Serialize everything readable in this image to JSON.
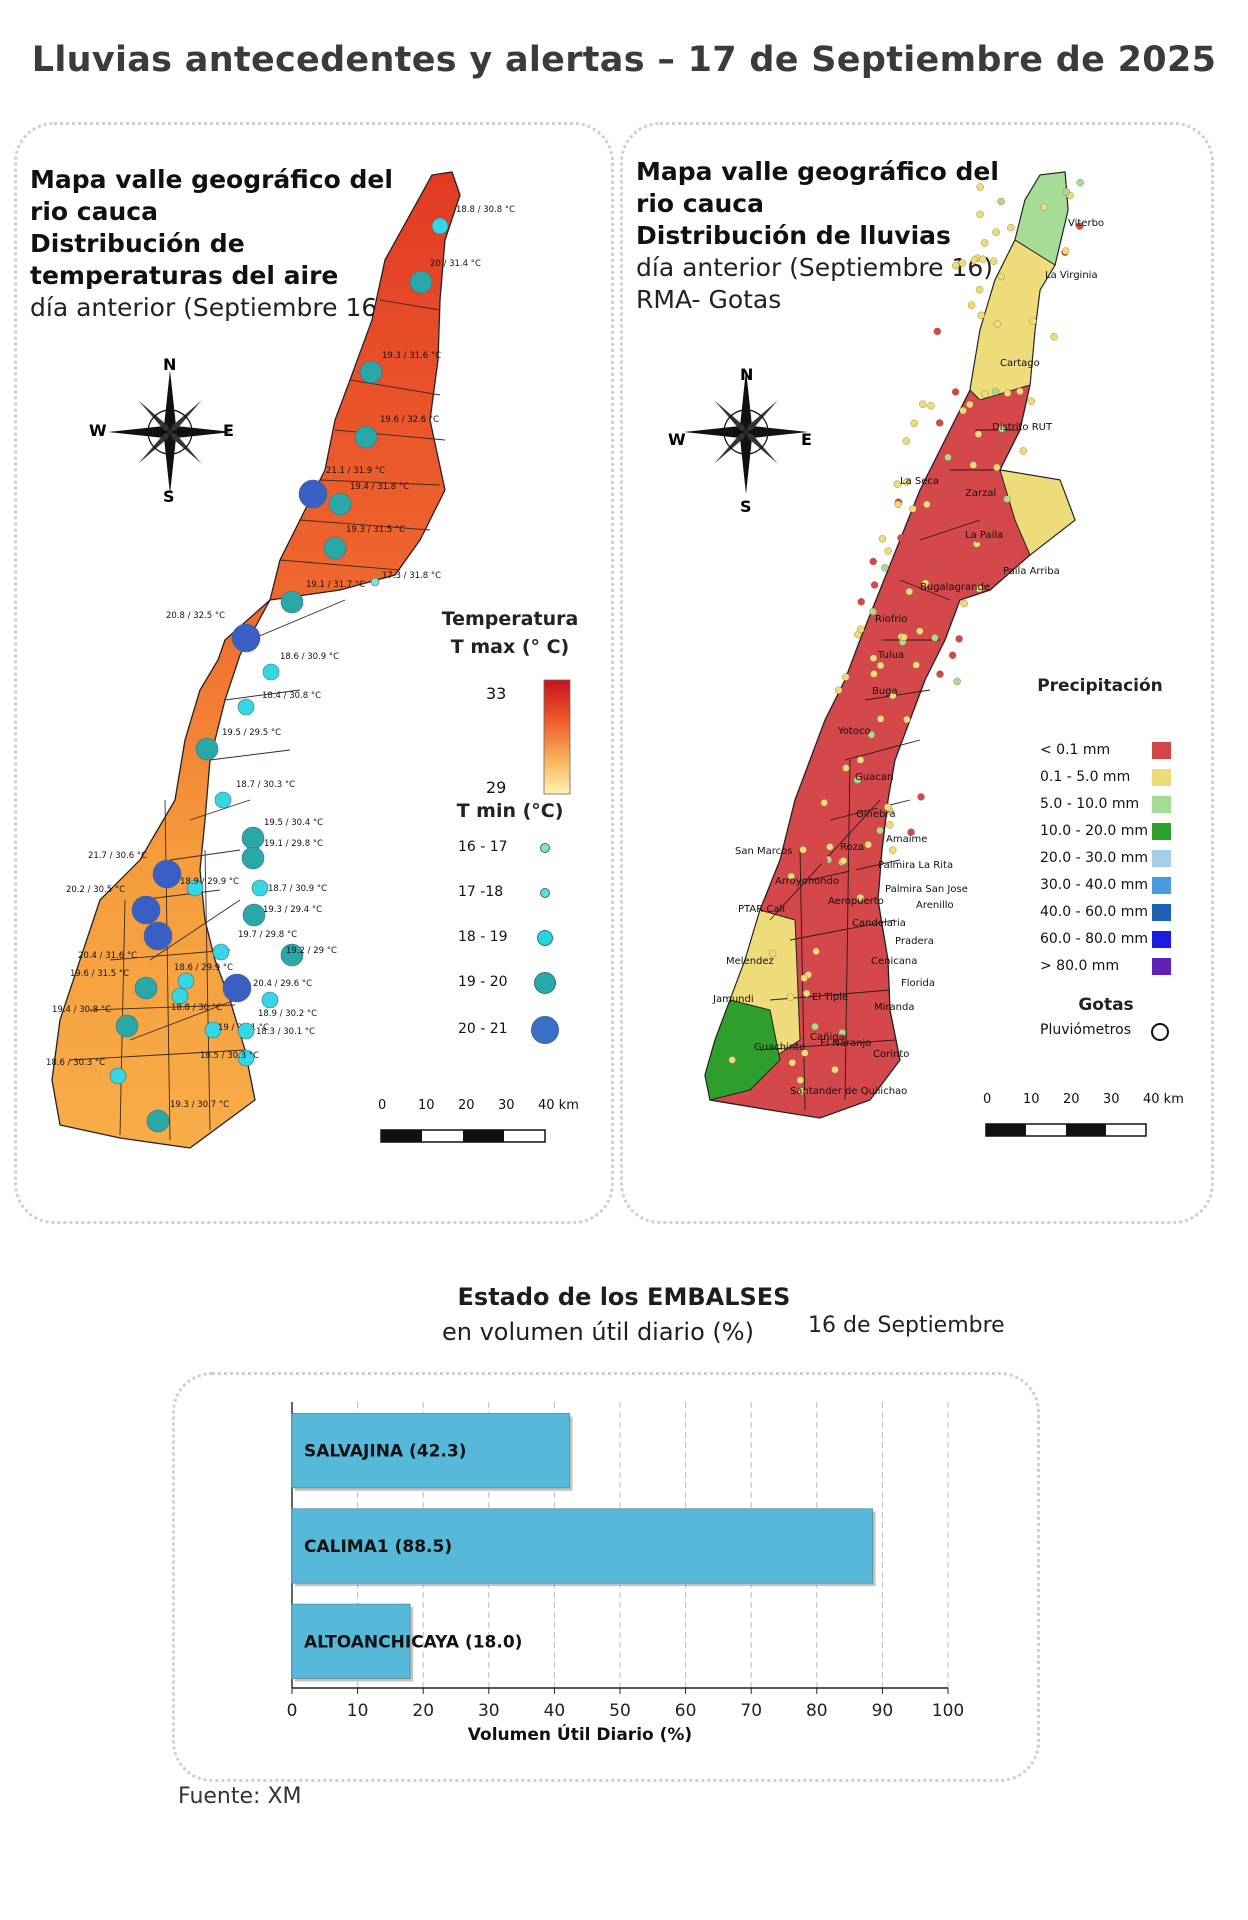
{
  "title": "Lluvias antecedentes y alertas – 17 de Septiembre de 2025",
  "left_panel": {
    "title_lines": [
      "Mapa valle geográfico del",
      "rio cauca"
    ],
    "bold_lines": [
      "Distribución de",
      "temperaturas del aire"
    ],
    "subtitle": "día anterior (Septiembre 16)",
    "compass": {
      "n": "N",
      "s": "S",
      "e": "E",
      "w": "W"
    },
    "legend": {
      "tmax_title_1": "Temperatura",
      "tmax_title_2": "T max (° C)",
      "tmax_high": "33",
      "tmax_low": "29",
      "tmin_title": "T min (°C)",
      "tmin_items": [
        {
          "label": "16 - 17",
          "color": "#7de3d0"
        },
        {
          "label": "17 -18",
          "color": "#5fdcdc"
        },
        {
          "label": "18 - 19",
          "color": "#22d6e0"
        },
        {
          "label": "19 - 20",
          "color": "#29a9a9"
        },
        {
          "label": "20 - 21",
          "color": "#3a6fc9"
        }
      ]
    },
    "scale": [
      "0",
      "10",
      "20",
      "30",
      "40 km"
    ],
    "stations": [
      "18.8 / 30.8 °C",
      "20 / 31.4 °C",
      "19.3 / 31.6 °C",
      "19.6 / 32.6 °C",
      "21.1 / 31.9 °C",
      "19.4 / 31.8 °C",
      "19.3 / 31.5 °C",
      "17.3 / 31.8 °C",
      "19.1 / 31.7 °C",
      "20.8 / 32.5 °C",
      "18.6 / 30.9 °C",
      "18.4 / 30.8 °C",
      "19.5 / 29.5 °C",
      "18.7 / 30.3 °C",
      "19.5 / 30.4 °C",
      "19.1 / 29.8 °C",
      "21.7 / 30.6 °C",
      "18.9 / 29.9 °C",
      "18.7 / 30.9 °C",
      "20.2 / 30.5 °C",
      "19.3 / 29.4 °C",
      "19.7 / 29.8 °C",
      "20.4 / 31.6 °C",
      "19.2 / 29 °C",
      "19.6 / 31.5 °C",
      "18.6 / 29.9 °C",
      "20.4 / 29.6 °C",
      "19.4 / 30.8 °C",
      "18.8 / 30 °C",
      "18.9 / 30.2 °C",
      "19 / 31.1 °C",
      "18.3 / 30.1 °C",
      "18.5 / 30.3 °C",
      "18.6 / 30.3 °C",
      "19.3 / 30.7 °C"
    ]
  },
  "right_panel": {
    "title_lines": [
      "Mapa valle geográfico del",
      "rio cauca"
    ],
    "bold_line": "Distribución de lluvias",
    "subtitle": "día anterior (Septiembre 16)",
    "subtitle2": "RMA- Gotas",
    "compass": {
      "n": "N",
      "s": "S",
      "e": "E",
      "w": "W"
    },
    "towns": [
      "Viterbo",
      "La Virginia",
      "Cartago",
      "Distrito RUT",
      "La Seca",
      "Zarzal",
      "La Paila",
      "Paila Arriba",
      "Bugalagrande",
      "Riofrio",
      "Tulua",
      "Buga",
      "Yotoco",
      "Guacari",
      "Ginebra",
      "San Marcos",
      "Roza",
      "Amaime",
      "Palmira La Rita",
      "Arroyohondo",
      "Palmira San Jose",
      "Aeropuerto",
      "Arenillo",
      "PTAR Cali",
      "Candelaria",
      "Pradera",
      "Melendez",
      "Cenicana",
      "El Tiple",
      "Florida",
      "Jamundi",
      "Cañigal",
      "Miranda",
      "El Naranjo",
      "Guachinte",
      "Corinto",
      "Santander de Quilichao"
    ],
    "legend": {
      "title": "Precipitación",
      "items": [
        {
          "label": "< 0.1 mm",
          "color": "#d2464a"
        },
        {
          "label": "0.1 - 5.0 mm",
          "color": "#eedc7a"
        },
        {
          "label": "5.0 - 10.0 mm",
          "color": "#a7dc97"
        },
        {
          "label": "10.0 - 20.0 mm",
          "color": "#2e9e2c"
        },
        {
          "label": "20.0 - 30.0 mm",
          "color": "#a5cfe8"
        },
        {
          "label": "30.0 - 40.0 mm",
          "color": "#4b9be0"
        },
        {
          "label": "40.0 - 60.0 mm",
          "color": "#1d62b0"
        },
        {
          "label": "60.0 - 80.0 mm",
          "color": "#1c1ce0"
        },
        {
          "label": "> 80.0 mm",
          "color": "#5e22b8"
        }
      ],
      "gotas_title": "Gotas",
      "gotas_label": "Pluviómetros"
    },
    "scale": [
      "0",
      "10",
      "20",
      "30",
      "40 km"
    ]
  },
  "reservoirs": {
    "title": "Estado de los EMBALSES",
    "subtitle": "en volumen útil diario (%)",
    "date": "16 de Septiembre"
  },
  "chart_data": {
    "type": "bar",
    "orientation": "horizontal",
    "categories": [
      "SALVAJINA (42.3)",
      "CALIMA1 (88.5)",
      "ALTOANCHICAYA (18.0)"
    ],
    "values": [
      42.3,
      88.5,
      18.0
    ],
    "xlabel": "Volumen Útil Diario (%)",
    "xlim": [
      0,
      100
    ],
    "xticks": [
      "0",
      "10",
      "20",
      "30",
      "40",
      "50",
      "60",
      "70",
      "80",
      "90",
      "100"
    ],
    "bar_color": "#56b9d9",
    "grid": "vertical dashed"
  },
  "source": "Fuente: XM"
}
